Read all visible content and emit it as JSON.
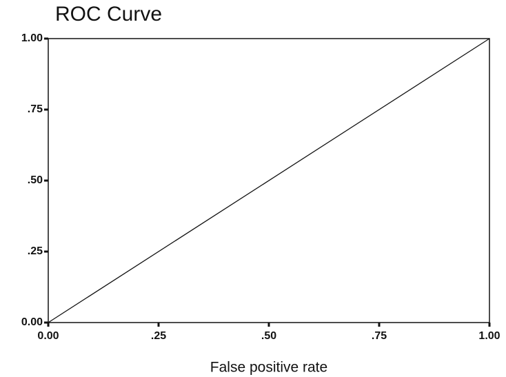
{
  "chart_data": {
    "type": "line",
    "title": "ROC Curve",
    "x_label": "False positive rate",
    "x": [
      0,
      1
    ],
    "values": [
      0,
      1
    ],
    "color": "#111111",
    "xlim": [
      0,
      1
    ],
    "ylim": [
      0,
      1
    ],
    "xticks": [
      {
        "value": 0,
        "label": "0.00"
      },
      {
        "value": 0.25,
        "label": ".25"
      },
      {
        "value": 0.5,
        "label": ".50"
      },
      {
        "value": 0.75,
        "label": ".75"
      },
      {
        "value": 1,
        "label": "1.00"
      }
    ],
    "yticks": [
      {
        "value": 0,
        "label": "0.00"
      },
      {
        "value": 0.25,
        "label": ".25"
      },
      {
        "value": 0.5,
        "label": ".50"
      },
      {
        "value": 0.75,
        "label": ".75"
      },
      {
        "value": 1,
        "label": "1.00"
      }
    ]
  }
}
